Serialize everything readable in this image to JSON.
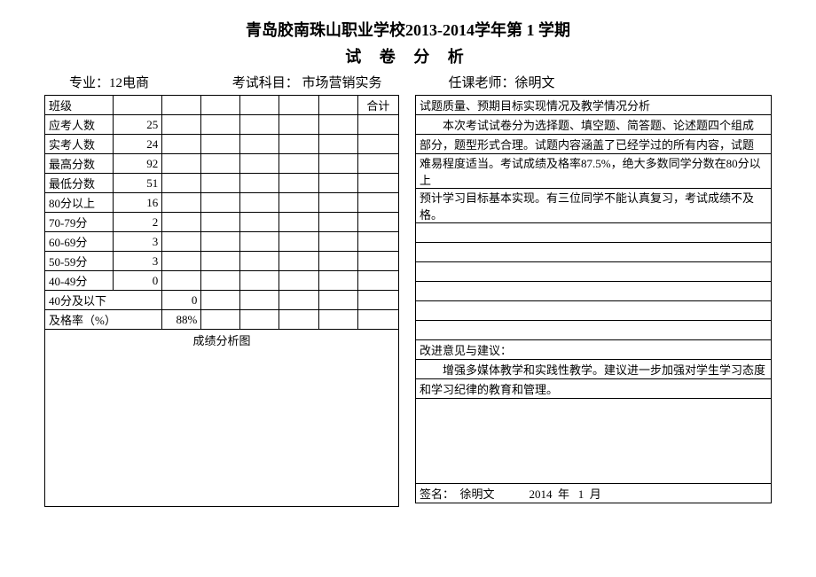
{
  "header": {
    "title_line1": "青岛胶南珠山职业学校2013-2014学年第 1  学期",
    "title_line2": "试 卷 分 析",
    "major_label": "专业：",
    "major_value": "12电商",
    "subject_label": "考试科目：",
    "subject_value": "市场营销实务",
    "teacher_label": "任课老师：",
    "teacher_value": "徐明文"
  },
  "left": {
    "class_label": "班级",
    "heji": "合计",
    "rows": [
      {
        "label": "应考人数",
        "value": "25"
      },
      {
        "label": "实考人数",
        "value": "24"
      },
      {
        "label": "最高分数",
        "value": "92"
      },
      {
        "label": "最低分数",
        "value": "51"
      },
      {
        "label": "80分以上",
        "value": "16"
      },
      {
        "label": "70-79分",
        "value": "2"
      },
      {
        "label": "60-69分",
        "value": "3"
      },
      {
        "label": "50-59分",
        "value": "3"
      },
      {
        "label": "40-49分",
        "value": "0"
      },
      {
        "label": "40分及以下",
        "value": "0"
      },
      {
        "label": "及格率（%）",
        "value": "88%"
      }
    ],
    "chart_label": "成绩分析图"
  },
  "right": {
    "section1_title": "试题质量、预期目标实现情况及教学情况分析",
    "section1_lines": [
      "本次考试试卷分为选择题、填空题、简答题、论述题四个组成",
      "部分，题型形式合理。试题内容涵盖了已经学过的所有内容，试题",
      "难易程度适当。考试成绩及格率87.5%，绝大多数同学分数在80分以上",
      "预计学习目标基本实现。有三位同学不能认真复习，考试成绩不及格。",
      "",
      "",
      "",
      "",
      "",
      ""
    ],
    "section2_title": "改进意见与建议：",
    "section2_lines": [
      "增强多媒体教学和实践性教学。建议进一步加强对学生学习态度",
      "和学习纪律的教育和管理。"
    ],
    "signature_label": "签名：",
    "signature_name": "徐明文",
    "date_year": "2014",
    "date_year_unit": "年",
    "date_month": "1",
    "date_month_unit": "月"
  }
}
